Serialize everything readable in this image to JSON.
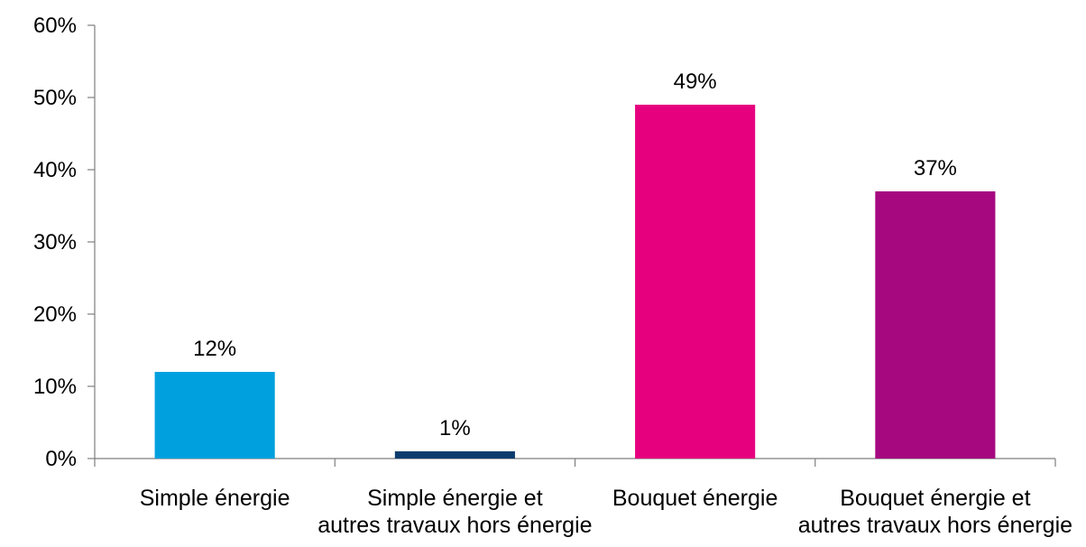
{
  "chart_data": {
    "type": "bar",
    "title": "",
    "xlabel": "",
    "ylabel": "",
    "ylim": [
      0,
      60
    ],
    "y_tick_step": 10,
    "y_tick_format": "percent",
    "grid": false,
    "legend": "none",
    "categories": [
      [
        "Simple énergie"
      ],
      [
        "Simple énergie et",
        "autres travaux hors énergie"
      ],
      [
        "Bouquet énergie"
      ],
      [
        "Bouquet énergie et",
        "autres travaux hors énergie"
      ]
    ],
    "values": [
      12,
      1,
      49,
      37
    ],
    "data_labels": [
      "12%",
      "1%",
      "49%",
      "37%"
    ],
    "colors": [
      "#00A0DE",
      "#0B3C6E",
      "#E6007E",
      "#A6097F"
    ]
  }
}
